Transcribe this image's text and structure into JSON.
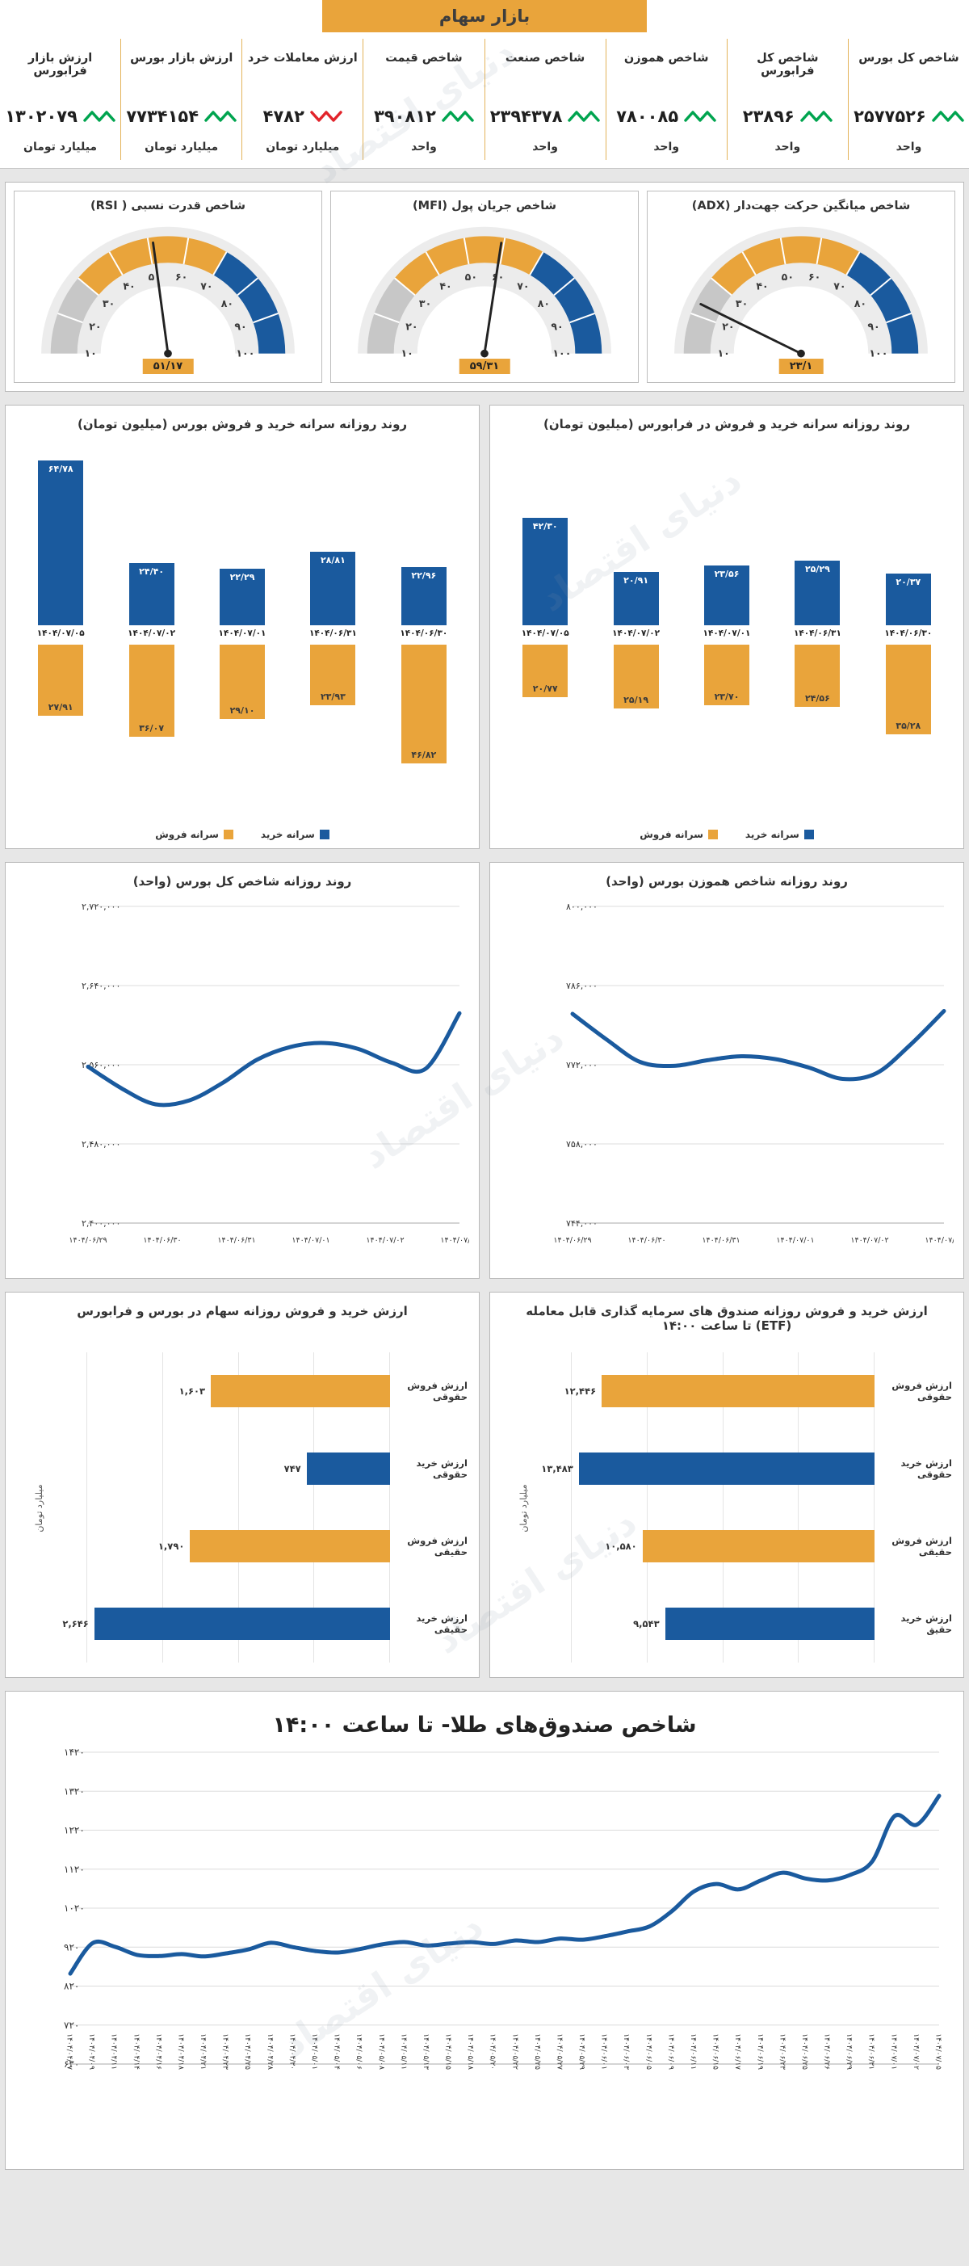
{
  "header": {
    "title": "بازار سهام"
  },
  "watermark": "دنیای اقتصاد",
  "colors": {
    "blue": "#1A5A9E",
    "gold": "#E9A43B",
    "green": "#00A44F",
    "red": "#E2242B",
    "page_bg": "#E7E7E7",
    "card_border": "#B9B9B9",
    "grid": "#DCDCDC",
    "text": "#333333"
  },
  "metrics": [
    {
      "label": "شاخص کل بورس",
      "value": "۲۵۷۷۵۲۶",
      "unit": "واحد",
      "trend": "up"
    },
    {
      "label": "شاخص کل فرابورس",
      "value": "۲۳۸۹۶",
      "unit": "واحد",
      "trend": "up"
    },
    {
      "label": "شاخص هموزن",
      "value": "۷۸۰۰۸۵",
      "unit": "واحد",
      "trend": "up"
    },
    {
      "label": "شاخص صنعت",
      "value": "۲۳۹۴۳۷۸",
      "unit": "واحد",
      "trend": "up"
    },
    {
      "label": "شاخص قیمت",
      "value": "۳۹۰۸۱۲",
      "unit": "واحد",
      "trend": "up"
    },
    {
      "label": "ارزش معاملات خرد",
      "value": "۴۷۸۲",
      "unit": "میلیارد تومان",
      "trend": "down"
    },
    {
      "label": "ارزش بازار بورس",
      "value": "۷۷۳۴۱۵۴",
      "unit": "میلیارد تومان",
      "trend": "up"
    },
    {
      "label": "ارزش بازار فرابورس",
      "value": "۱۳۰۲۰۷۹",
      "unit": "میلیارد تومان",
      "trend": "up"
    }
  ],
  "chart_data": [
    {
      "type": "gauge",
      "title": "شاخص میانگین حرکت جهت‌دار (ADX)",
      "value": 23.1,
      "value_label": "۲۳/۱",
      "min": 10,
      "max": 100,
      "tick_labels": [
        "۱۰",
        "۲۰",
        "۳۰",
        "۴۰",
        "۵۰",
        "۶۰",
        "۷۰",
        "۸۰",
        "۹۰",
        "۱۰۰"
      ],
      "zones": [
        {
          "from": 10,
          "to": 30,
          "color": "#c7c7c7"
        },
        {
          "from": 30,
          "to": 70,
          "color": "#E9A43B"
        },
        {
          "from": 70,
          "to": 100,
          "color": "#1A5A9E"
        }
      ]
    },
    {
      "type": "gauge",
      "title": "شاخص جریان پول (MFI)",
      "value": 59.31,
      "value_label": "۵۹/۳۱",
      "min": 10,
      "max": 100,
      "tick_labels": [
        "۱۰",
        "۲۰",
        "۳۰",
        "۴۰",
        "۵۰",
        "۶۰",
        "۷۰",
        "۸۰",
        "۹۰",
        "۱۰۰"
      ],
      "zones": [
        {
          "from": 10,
          "to": 30,
          "color": "#c7c7c7"
        },
        {
          "from": 30,
          "to": 70,
          "color": "#E9A43B"
        },
        {
          "from": 70,
          "to": 100,
          "color": "#1A5A9E"
        }
      ]
    },
    {
      "type": "gauge",
      "title": "شاخص قدرت نسبی ( RSI)",
      "value": 51.17,
      "value_label": "۵۱/۱۷",
      "min": 10,
      "max": 100,
      "tick_labels": [
        "۱۰",
        "۲۰",
        "۳۰",
        "۴۰",
        "۵۰",
        "۶۰",
        "۷۰",
        "۸۰",
        "۹۰",
        "۱۰۰"
      ],
      "zones": [
        {
          "from": 10,
          "to": 30,
          "color": "#c7c7c7"
        },
        {
          "from": 30,
          "to": 70,
          "color": "#E9A43B"
        },
        {
          "from": 70,
          "to": 100,
          "color": "#1A5A9E"
        }
      ]
    },
    {
      "type": "bar",
      "title": "روند روزانه سرانه خرید و فروش در فرابورس (میلیون تومان)",
      "categories": [
        "۱۴۰۴/۰۶/۳۰",
        "۱۴۰۴/۰۶/۳۱",
        "۱۴۰۴/۰۷/۰۱",
        "۱۴۰۴/۰۷/۰۲",
        "۱۴۰۴/۰۷/۰۵"
      ],
      "series": [
        {
          "name": "سرانه خرید",
          "color": "blue",
          "values": [
            20.37,
            25.29,
            23.56,
            20.91,
            42.3
          ],
          "labels": [
            "۲۰/۳۷",
            "۲۵/۲۹",
            "۲۳/۵۶",
            "۲۰/۹۱",
            "۴۲/۳۰"
          ]
        },
        {
          "name": "سرانه فروش",
          "color": "gold",
          "direction": "down",
          "values": [
            35.28,
            24.56,
            23.7,
            25.19,
            20.77
          ],
          "labels": [
            "۳۵/۲۸",
            "۲۴/۵۶",
            "۲۳/۷۰",
            "۲۵/۱۹",
            "۲۰/۷۷"
          ]
        }
      ]
    },
    {
      "type": "bar",
      "title": "روند روزانه سرانه خرید و فروش بورس (میلیون تومان)",
      "categories": [
        "۱۴۰۴/۰۶/۳۰",
        "۱۴۰۴/۰۶/۳۱",
        "۱۴۰۴/۰۷/۰۱",
        "۱۴۰۴/۰۷/۰۲",
        "۱۴۰۴/۰۷/۰۵"
      ],
      "series": [
        {
          "name": "سرانه خرید",
          "color": "blue",
          "values": [
            22.96,
            28.81,
            22.29,
            24.4,
            64.78
          ],
          "labels": [
            "۲۲/۹۶",
            "۲۸/۸۱",
            "۲۲/۲۹",
            "۲۴/۴۰",
            "۶۴/۷۸"
          ]
        },
        {
          "name": "سرانه فروش",
          "color": "gold",
          "direction": "down",
          "values": [
            46.82,
            23.93,
            29.1,
            36.07,
            27.91
          ],
          "labels": [
            "۴۶/۸۲",
            "۲۳/۹۳",
            "۲۹/۱۰",
            "۳۶/۰۷",
            "۲۷/۹۱"
          ]
        }
      ]
    },
    {
      "type": "line",
      "title": "روند روزانه شاخص هموزن بورس (واحد)",
      "y_ticks": [
        "۸۰۰,۰۰۰",
        "۷۸۶,۰۰۰",
        "۷۷۲,۰۰۰",
        "۷۵۸,۰۰۰",
        "۷۴۴,۰۰۰"
      ],
      "y_min": 744000,
      "y_max": 800000,
      "x_labels": [
        "۱۴۰۴/۰۶/۲۹",
        "۱۴۰۴/۰۶/۳۰",
        "۱۴۰۴/۰۶/۳۱",
        "۱۴۰۴/۰۷/۰۱",
        "۱۴۰۴/۰۷/۰۲",
        "۱۴۰۴/۰۷/۰۵"
      ],
      "values": [
        781000,
        776500,
        772500,
        771800,
        772800,
        773500,
        773000,
        771500,
        769500,
        770500,
        775500,
        781500
      ]
    },
    {
      "type": "line",
      "title": "روند روزانه شاخص کل بورس (واحد)",
      "y_ticks": [
        "۲,۷۲۰,۰۰۰",
        "۲,۶۴۰,۰۰۰",
        "۲,۵۶۰,۰۰۰",
        "۲,۴۸۰,۰۰۰",
        "۲,۴۰۰,۰۰۰"
      ],
      "y_min": 2400000,
      "y_max": 2720000,
      "x_labels": [
        "۱۴۰۴/۰۶/۲۹",
        "۱۴۰۴/۰۶/۳۰",
        "۱۴۰۴/۰۶/۳۱",
        "۱۴۰۴/۰۷/۰۱",
        "۱۴۰۴/۰۷/۰۲",
        "۱۴۰۴/۰۷/۰۵"
      ],
      "values": [
        2558000,
        2536000,
        2520000,
        2524000,
        2542000,
        2565000,
        2578000,
        2582000,
        2576000,
        2562000,
        2556000,
        2612000
      ]
    },
    {
      "type": "hbar",
      "title": "ارزش خرید و فروش روزانه صندوق های سرمایه گذاری قابل معامله (ETF) تا ساعت ۱۴:۰۰",
      "axis_label": "میلیارد تومان",
      "rows": [
        {
          "label": "ارزش فروش حقوقی",
          "value": 12446,
          "value_label": "۱۲,۴۴۶",
          "color": "gold"
        },
        {
          "label": "ارزش خرید حقوقی",
          "value": 13483,
          "value_label": "۱۳,۴۸۳",
          "color": "blue"
        },
        {
          "label": "ارزش فروش حقیقی",
          "value": 10580,
          "value_label": "۱۰,۵۸۰",
          "color": "gold"
        },
        {
          "label": "ارزش خرید حقیق",
          "value": 9543,
          "value_label": "۹,۵۴۳",
          "color": "blue"
        }
      ]
    },
    {
      "type": "hbar",
      "title": "ارزش خرید و فروش روزانه سهام در بورس و فرابورس",
      "axis_label": "میلیارد تومان",
      "rows": [
        {
          "label": "ارزش فروش حقوقی",
          "value": 1603,
          "value_label": "۱,۶۰۳",
          "color": "gold"
        },
        {
          "label": "ارزش خرید حقوقی",
          "value": 747,
          "value_label": "۷۴۷",
          "color": "blue"
        },
        {
          "label": "ارزش فروش حقیقی",
          "value": 1790,
          "value_label": "۱,۷۹۰",
          "color": "gold"
        },
        {
          "label": "ارزش خرید حقیقی",
          "value": 2646,
          "value_label": "۲,۶۴۶",
          "color": "blue"
        }
      ]
    },
    {
      "type": "line",
      "title": "شاخص صندوق‌های طلا- تا ساعت ۱۴:۰۰",
      "y_ticks": [
        "۱۴۲۰",
        "۱۳۲۰",
        "۱۲۲۰",
        "۱۱۲۰",
        "۱۰۲۰",
        "۹۲۰",
        "۸۲۰",
        "۷۲۰",
        "۶۲۰"
      ],
      "y_min": 620,
      "y_max": 1420,
      "x_labels": [
        "۱۴۰۴/۰۴/۰۷",
        "۱۴۰۴/۰۴/۰۹",
        "۱۴۰۴/۰۴/۱۱",
        "۱۴۰۴/۰۴/۱۴",
        "۱۴۰۴/۰۴/۱۶",
        "۱۴۰۴/۰۴/۱۸",
        "۱۴۰۴/۰۴/۲۱",
        "۱۴۰۴/۰۴/۲۳",
        "۱۴۰۴/۰۴/۲۵",
        "۱۴۰۴/۰۴/۲۸",
        "۱۴۰۴/۰۴/۳۰",
        "۱۴۰۴/۰۵/۰۱",
        "۱۴۰۴/۰۵/۰۴",
        "۱۴۰۴/۰۵/۰۶",
        "۱۴۰۴/۰۵/۰۸",
        "۱۴۰۴/۰۵/۱۱",
        "۱۴۰۴/۰۵/۱۳",
        "۱۴۰۴/۰۵/۱۵",
        "۱۴۰۴/۰۵/۱۸",
        "۱۴۰۴/۰۵/۲۰",
        "۱۴۰۴/۰۵/۲۲",
        "۱۴۰۴/۰۵/۲۵",
        "۱۴۰۴/۰۵/۲۷",
        "۱۴۰۴/۰۵/۲۹",
        "۱۴۰۴/۰۶/۰۱",
        "۱۴۰۴/۰۶/۰۳",
        "۱۴۰۴/۰۶/۰۵",
        "۱۴۰۴/۰۶/۰۹",
        "۱۴۰۴/۰۶/۱۱",
        "۱۴۰۴/۰۶/۱۵",
        "۱۴۰۴/۰۶/۱۷",
        "۱۴۰۴/۰۶/۱۹",
        "۱۴۰۴/۰۶/۲۳",
        "۱۴۰۴/۰۶/۲۵",
        "۱۴۰۴/۰۶/۲۶",
        "۱۴۰۴/۰۶/۲۹",
        "۱۴۰۴/۰۶/۳۱",
        "۱۴۰۴/۰۷/۰۱",
        "۱۴۰۴/۰۷/۰۲",
        "۱۴۰۴/۰۷/۰۵"
      ],
      "values": [
        852,
        930,
        921,
        900,
        897,
        902,
        896,
        904,
        914,
        931,
        920,
        910,
        906,
        915,
        927,
        933,
        924,
        929,
        933,
        928,
        937,
        933,
        942,
        939,
        948,
        960,
        973,
        1012,
        1063,
        1082,
        1068,
        1091,
        1111,
        1096,
        1091,
        1105,
        1140,
        1256,
        1234,
        1308
      ]
    }
  ]
}
